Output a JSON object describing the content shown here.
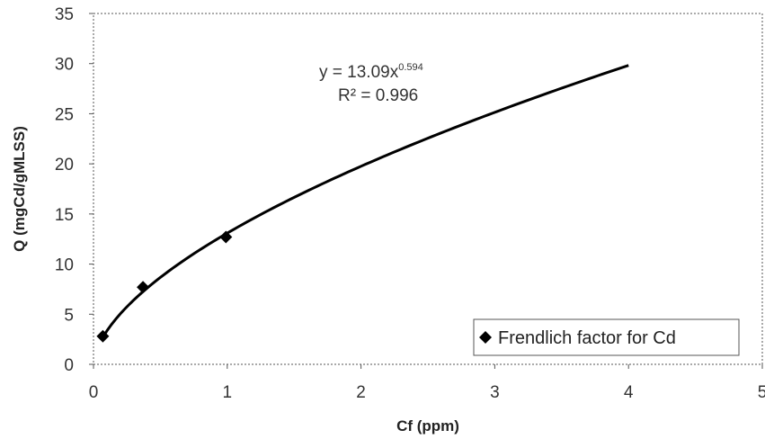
{
  "chart_data": {
    "type": "scatter",
    "title": "",
    "xlabel": "Cf (ppm)",
    "ylabel": "Q (mgCd/gMLSS)",
    "xlim": [
      0,
      5
    ],
    "ylim": [
      0,
      35
    ],
    "x_ticks": [
      0,
      1,
      2,
      3,
      4,
      5
    ],
    "y_ticks": [
      0,
      5,
      10,
      15,
      20,
      25,
      30,
      35
    ],
    "grid": false,
    "legend_position": "bottom-right",
    "series": [
      {
        "name": "Frendlich factor for Cd",
        "marker": "diamond",
        "color": "#000000",
        "x": [
          0.07,
          0.37,
          0.99
        ],
        "y": [
          2.8,
          7.7,
          12.7
        ]
      }
    ],
    "trendline": {
      "type": "power",
      "coefficient": 13.09,
      "exponent": 0.594,
      "x_range": [
        0.07,
        4.0
      ],
      "color": "#000000",
      "equation_prefix": "y = 13.09x",
      "equation_exponent": "0.594",
      "r_squared_label": "R² = 0.996"
    }
  }
}
